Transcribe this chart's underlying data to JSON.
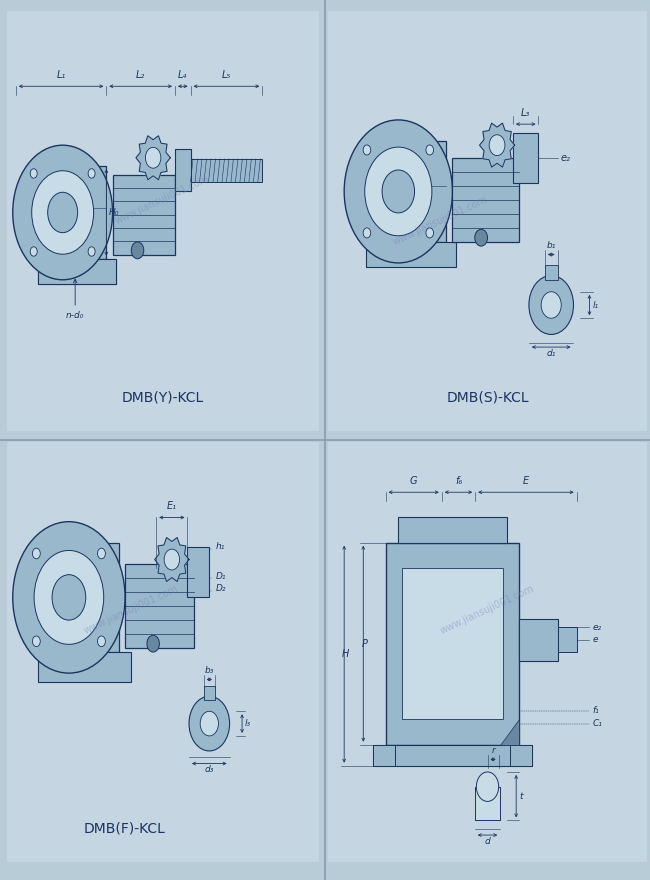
{
  "bg_outer": "#b8ccd8",
  "bg_panel": "#c5d5e2",
  "line_color": "#1a3560",
  "fill_color": "#9ab8cc",
  "fill_light": "#c8dce8",
  "fill_dark": "#6888a0",
  "text_color": "#1a3560",
  "watermark_color": "#7878bb",
  "watermark_text": "www.jiansuji001.com",
  "labels": {
    "panel1": "DMB(Y)-KCL",
    "panel2": "DMB(S)-KCL",
    "panel3": "DMB(F)-KCL"
  }
}
